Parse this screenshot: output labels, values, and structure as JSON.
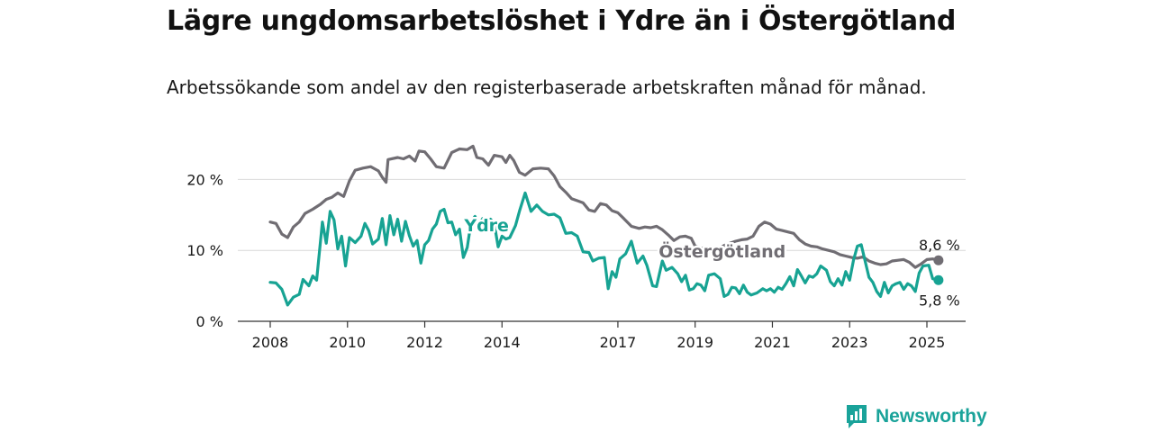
{
  "title": "Lägre ungdomsarbetslöshet i Ydre än i Östergötland",
  "subtitle": "Arbetssökande som andel av den registerbaserade arbetskraften månad för månad.",
  "brand": "Newsworthy",
  "colors": {
    "ydre": "#17a393",
    "ostergotland": "#706d73",
    "grid": "#d9d9d9",
    "brand": "#1aa39a"
  },
  "chart_data": {
    "type": "line",
    "ylim": [
      0,
      25
    ],
    "xlim": [
      2008,
      2025.5
    ],
    "y_ticks": [
      {
        "value": 0,
        "label": "0 %"
      },
      {
        "value": 10,
        "label": "10 %"
      },
      {
        "value": 20,
        "label": "20 %"
      }
    ],
    "x_ticks": [
      {
        "value": 2008,
        "label": "2008"
      },
      {
        "value": 2010,
        "label": "2010"
      },
      {
        "value": 2012,
        "label": "2012"
      },
      {
        "value": 2014,
        "label": "2014"
      },
      {
        "value": 2017,
        "label": "2017"
      },
      {
        "value": 2019,
        "label": "2019"
      },
      {
        "value": 2021,
        "label": "2021"
      },
      {
        "value": 2023,
        "label": "2023"
      },
      {
        "value": 2025,
        "label": "2025"
      }
    ],
    "series": [
      {
        "name": "Östergötland",
        "color": "#706d73",
        "end_label": "8,6 %",
        "points": [
          [
            2008.0,
            14.0
          ],
          [
            2008.15,
            13.8
          ],
          [
            2008.3,
            12.3
          ],
          [
            2008.45,
            11.8
          ],
          [
            2008.6,
            13.3
          ],
          [
            2008.75,
            14.0
          ],
          [
            2008.9,
            15.2
          ],
          [
            2009.1,
            15.8
          ],
          [
            2009.3,
            16.5
          ],
          [
            2009.45,
            17.2
          ],
          [
            2009.6,
            17.5
          ],
          [
            2009.75,
            18.1
          ],
          [
            2009.9,
            17.6
          ],
          [
            2010.05,
            19.8
          ],
          [
            2010.2,
            21.3
          ],
          [
            2010.4,
            21.6
          ],
          [
            2010.6,
            21.8
          ],
          [
            2010.8,
            21.2
          ],
          [
            2010.9,
            20.3
          ],
          [
            2011.0,
            19.6
          ],
          [
            2011.05,
            22.8
          ],
          [
            2011.3,
            23.1
          ],
          [
            2011.45,
            22.9
          ],
          [
            2011.6,
            23.3
          ],
          [
            2011.75,
            22.6
          ],
          [
            2011.85,
            24.0
          ],
          [
            2012.0,
            23.9
          ],
          [
            2012.15,
            22.9
          ],
          [
            2012.3,
            21.8
          ],
          [
            2012.5,
            21.6
          ],
          [
            2012.7,
            23.8
          ],
          [
            2012.9,
            24.3
          ],
          [
            2013.1,
            24.2
          ],
          [
            2013.25,
            24.7
          ],
          [
            2013.35,
            23.1
          ],
          [
            2013.5,
            22.9
          ],
          [
            2013.65,
            22.0
          ],
          [
            2013.8,
            23.4
          ],
          [
            2014.0,
            23.2
          ],
          [
            2014.1,
            22.4
          ],
          [
            2014.2,
            23.4
          ],
          [
            2014.3,
            22.7
          ],
          [
            2014.45,
            21.0
          ],
          [
            2014.6,
            20.6
          ],
          [
            2014.8,
            21.5
          ],
          [
            2015.0,
            21.6
          ],
          [
            2015.2,
            21.5
          ],
          [
            2015.35,
            20.5
          ],
          [
            2015.5,
            19.0
          ],
          [
            2015.65,
            18.2
          ],
          [
            2015.8,
            17.3
          ],
          [
            2015.95,
            17.0
          ],
          [
            2016.1,
            16.7
          ],
          [
            2016.25,
            15.7
          ],
          [
            2016.4,
            15.5
          ],
          [
            2016.55,
            16.6
          ],
          [
            2016.7,
            16.4
          ],
          [
            2016.85,
            15.6
          ],
          [
            2017.0,
            15.3
          ],
          [
            2017.15,
            14.5
          ],
          [
            2017.35,
            13.4
          ],
          [
            2017.55,
            13.1
          ],
          [
            2017.7,
            13.3
          ],
          [
            2017.85,
            13.2
          ],
          [
            2018.0,
            13.4
          ],
          [
            2018.15,
            12.9
          ],
          [
            2018.3,
            12.2
          ],
          [
            2018.45,
            11.4
          ],
          [
            2018.6,
            11.9
          ],
          [
            2018.75,
            12.0
          ],
          [
            2018.9,
            11.7
          ],
          [
            2019.0,
            10.6
          ],
          [
            2019.15,
            10.3
          ],
          [
            2019.3,
            10.4
          ],
          [
            2019.45,
            10.3
          ],
          [
            2019.6,
            10.1
          ],
          [
            2019.75,
            10.7
          ],
          [
            2019.9,
            11.0
          ],
          [
            2020.05,
            11.3
          ],
          [
            2020.2,
            11.5
          ],
          [
            2020.35,
            11.6
          ],
          [
            2020.5,
            12.0
          ],
          [
            2020.65,
            13.4
          ],
          [
            2020.8,
            14.0
          ],
          [
            2020.95,
            13.7
          ],
          [
            2021.1,
            13.0
          ],
          [
            2021.25,
            12.8
          ],
          [
            2021.4,
            12.6
          ],
          [
            2021.55,
            12.4
          ],
          [
            2021.7,
            11.5
          ],
          [
            2021.85,
            10.9
          ],
          [
            2022.0,
            10.6
          ],
          [
            2022.15,
            10.5
          ],
          [
            2022.3,
            10.2
          ],
          [
            2022.45,
            10.0
          ],
          [
            2022.6,
            9.8
          ],
          [
            2022.75,
            9.4
          ],
          [
            2022.9,
            9.2
          ],
          [
            2023.05,
            9.0
          ],
          [
            2023.2,
            8.9
          ],
          [
            2023.35,
            9.1
          ],
          [
            2023.5,
            8.5
          ],
          [
            2023.65,
            8.2
          ],
          [
            2023.8,
            8.0
          ],
          [
            2023.95,
            8.1
          ],
          [
            2024.1,
            8.5
          ],
          [
            2024.25,
            8.6
          ],
          [
            2024.4,
            8.7
          ],
          [
            2024.55,
            8.3
          ],
          [
            2024.7,
            7.6
          ],
          [
            2024.85,
            8.1
          ],
          [
            2025.0,
            8.7
          ],
          [
            2025.15,
            8.8
          ],
          [
            2025.3,
            8.6
          ]
        ]
      },
      {
        "name": "Ydre",
        "color": "#17a393",
        "end_label": "5,8 %",
        "points": [
          [
            2008.0,
            5.5
          ],
          [
            2008.15,
            5.4
          ],
          [
            2008.3,
            4.5
          ],
          [
            2008.45,
            2.3
          ],
          [
            2008.6,
            3.4
          ],
          [
            2008.75,
            3.8
          ],
          [
            2008.85,
            5.9
          ],
          [
            2009.0,
            5.0
          ],
          [
            2009.1,
            6.4
          ],
          [
            2009.2,
            5.8
          ],
          [
            2009.35,
            14.0
          ],
          [
            2009.45,
            11.0
          ],
          [
            2009.55,
            15.5
          ],
          [
            2009.65,
            14.3
          ],
          [
            2009.75,
            10.2
          ],
          [
            2009.85,
            12.0
          ],
          [
            2009.95,
            7.8
          ],
          [
            2010.05,
            11.8
          ],
          [
            2010.2,
            11.1
          ],
          [
            2010.35,
            12.0
          ],
          [
            2010.45,
            13.8
          ],
          [
            2010.55,
            12.8
          ],
          [
            2010.65,
            10.9
          ],
          [
            2010.8,
            11.6
          ],
          [
            2010.9,
            14.5
          ],
          [
            2011.0,
            10.8
          ],
          [
            2011.1,
            14.9
          ],
          [
            2011.2,
            12.2
          ],
          [
            2011.3,
            14.4
          ],
          [
            2011.4,
            11.3
          ],
          [
            2011.5,
            14.1
          ],
          [
            2011.6,
            12.1
          ],
          [
            2011.7,
            10.6
          ],
          [
            2011.8,
            11.4
          ],
          [
            2011.9,
            8.2
          ],
          [
            2012.0,
            10.8
          ],
          [
            2012.1,
            11.4
          ],
          [
            2012.2,
            13.0
          ],
          [
            2012.3,
            13.7
          ],
          [
            2012.4,
            15.5
          ],
          [
            2012.5,
            15.8
          ],
          [
            2012.6,
            13.9
          ],
          [
            2012.7,
            14.0
          ],
          [
            2012.8,
            12.2
          ],
          [
            2012.9,
            13.0
          ],
          [
            2013.0,
            9.0
          ],
          [
            2013.1,
            10.4
          ],
          [
            2013.2,
            14.0
          ],
          [
            2013.3,
            14.8
          ],
          [
            2013.4,
            13.6
          ],
          [
            2013.5,
            14.5
          ],
          [
            2013.6,
            14.2
          ],
          [
            2013.7,
            14.4
          ],
          [
            2013.8,
            13.8
          ],
          [
            2013.9,
            10.5
          ],
          [
            2014.0,
            12.0
          ],
          [
            2014.1,
            11.6
          ],
          [
            2014.2,
            11.8
          ],
          [
            2014.35,
            13.5
          ],
          [
            2014.45,
            15.5
          ],
          [
            2014.6,
            18.1
          ],
          [
            2014.75,
            15.5
          ],
          [
            2014.9,
            16.4
          ],
          [
            2015.05,
            15.5
          ],
          [
            2015.2,
            15.0
          ],
          [
            2015.35,
            15.1
          ],
          [
            2015.5,
            14.6
          ],
          [
            2015.65,
            12.4
          ],
          [
            2015.8,
            12.5
          ],
          [
            2015.95,
            12.0
          ],
          [
            2016.1,
            9.8
          ],
          [
            2016.25,
            9.7
          ],
          [
            2016.35,
            8.5
          ],
          [
            2016.5,
            8.9
          ],
          [
            2016.65,
            9.0
          ],
          [
            2016.75,
            4.6
          ],
          [
            2016.85,
            7.0
          ],
          [
            2016.95,
            6.2
          ],
          [
            2017.05,
            8.8
          ],
          [
            2017.2,
            9.5
          ],
          [
            2017.35,
            11.3
          ],
          [
            2017.5,
            8.2
          ],
          [
            2017.65,
            9.2
          ],
          [
            2017.75,
            7.9
          ],
          [
            2017.9,
            5.0
          ],
          [
            2018.0,
            4.9
          ],
          [
            2018.15,
            8.5
          ],
          [
            2018.25,
            7.2
          ],
          [
            2018.4,
            7.6
          ],
          [
            2018.55,
            6.7
          ],
          [
            2018.65,
            5.6
          ],
          [
            2018.75,
            6.5
          ],
          [
            2018.85,
            4.4
          ],
          [
            2018.95,
            4.6
          ],
          [
            2019.05,
            5.3
          ],
          [
            2019.15,
            5.1
          ],
          [
            2019.25,
            4.3
          ],
          [
            2019.35,
            6.5
          ],
          [
            2019.5,
            6.7
          ],
          [
            2019.65,
            6.0
          ],
          [
            2019.75,
            3.5
          ],
          [
            2019.85,
            3.8
          ],
          [
            2019.95,
            4.8
          ],
          [
            2020.05,
            4.7
          ],
          [
            2020.15,
            3.9
          ],
          [
            2020.25,
            5.1
          ],
          [
            2020.35,
            4.1
          ],
          [
            2020.45,
            3.7
          ],
          [
            2020.6,
            4.0
          ],
          [
            2020.75,
            4.6
          ],
          [
            2020.85,
            4.3
          ],
          [
            2020.95,
            4.6
          ],
          [
            2021.05,
            4.1
          ],
          [
            2021.15,
            4.8
          ],
          [
            2021.25,
            4.5
          ],
          [
            2021.35,
            5.3
          ],
          [
            2021.45,
            6.3
          ],
          [
            2021.55,
            5.0
          ],
          [
            2021.65,
            7.3
          ],
          [
            2021.75,
            6.4
          ],
          [
            2021.85,
            5.4
          ],
          [
            2021.95,
            6.4
          ],
          [
            2022.05,
            6.2
          ],
          [
            2022.15,
            6.7
          ],
          [
            2022.25,
            7.8
          ],
          [
            2022.4,
            7.2
          ],
          [
            2022.5,
            5.6
          ],
          [
            2022.6,
            5.0
          ],
          [
            2022.7,
            6.0
          ],
          [
            2022.8,
            5.1
          ],
          [
            2022.9,
            7.0
          ],
          [
            2023.0,
            5.8
          ],
          [
            2023.1,
            8.6
          ],
          [
            2023.2,
            10.6
          ],
          [
            2023.3,
            10.8
          ],
          [
            2023.4,
            8.5
          ],
          [
            2023.5,
            6.2
          ],
          [
            2023.6,
            5.5
          ],
          [
            2023.7,
            4.2
          ],
          [
            2023.8,
            3.5
          ],
          [
            2023.9,
            5.5
          ],
          [
            2024.0,
            4.0
          ],
          [
            2024.1,
            5.0
          ],
          [
            2024.2,
            5.3
          ],
          [
            2024.3,
            5.5
          ],
          [
            2024.4,
            4.5
          ],
          [
            2024.5,
            5.3
          ],
          [
            2024.6,
            5.0
          ],
          [
            2024.7,
            4.2
          ],
          [
            2024.8,
            6.8
          ],
          [
            2024.9,
            7.8
          ],
          [
            2025.05,
            7.9
          ],
          [
            2025.15,
            6.0
          ],
          [
            2025.3,
            5.8
          ]
        ]
      }
    ],
    "annotations": [
      {
        "text": "Ydre",
        "series": "Ydre",
        "x": 2013.6,
        "y": 12.7
      },
      {
        "text": "Östergötland",
        "series": "Östergötland",
        "x": 2019.7,
        "y": 9.0
      }
    ]
  }
}
